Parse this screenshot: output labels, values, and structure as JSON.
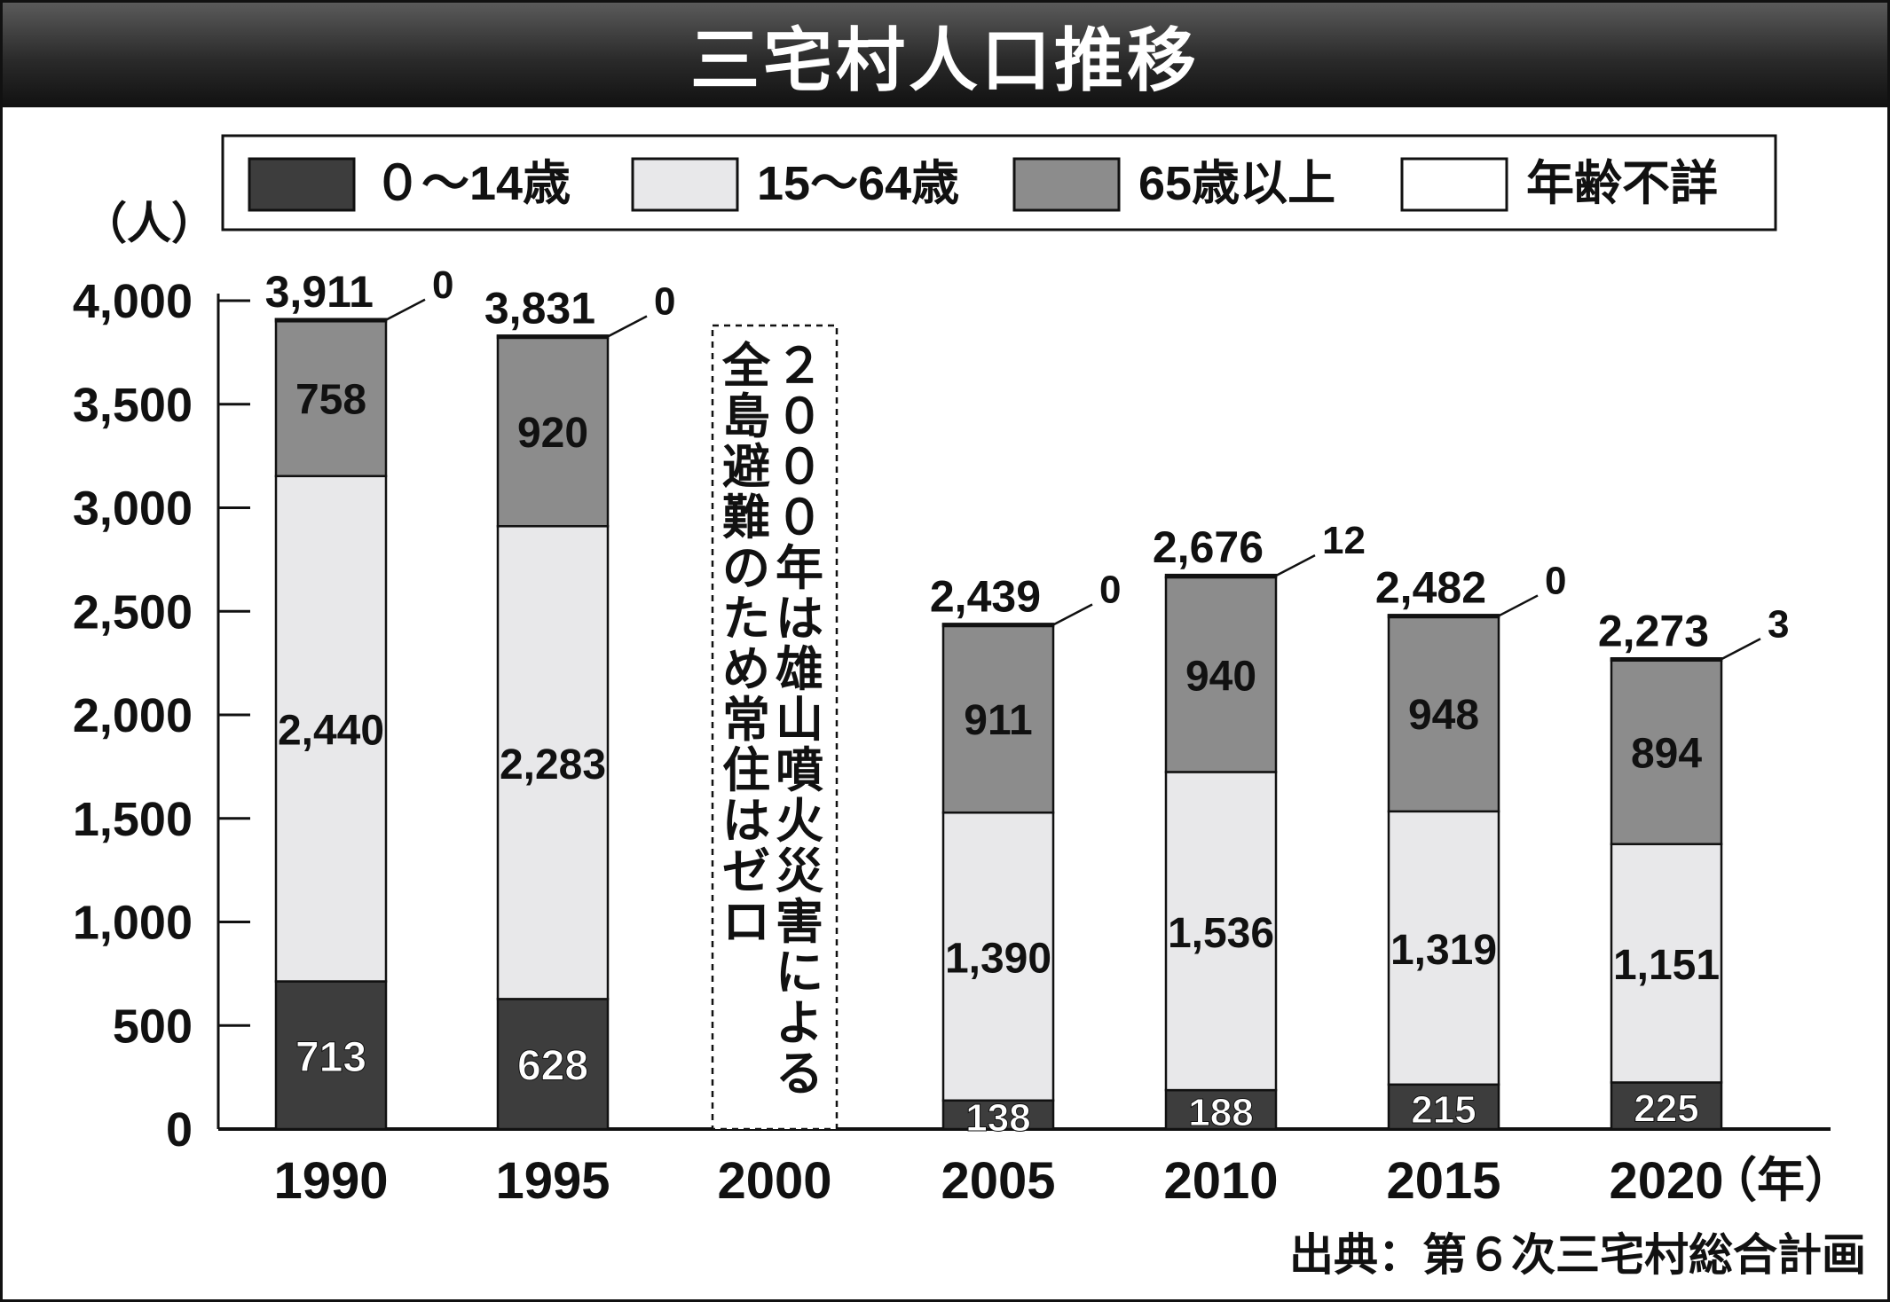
{
  "title": "三宅村人口推移",
  "source": "出典：第６次三宅村総合計画",
  "colors": {
    "age_0_14": "#3d3d3d",
    "age_15_64": "#e8e8ea",
    "age_65_plus": "#8c8c8c",
    "age_unknown": "#ffffff",
    "text_dark": "#111111",
    "text_light": "#ffffff"
  },
  "chart_data": {
    "type": "bar",
    "stacked": true,
    "y_unit_label": "（人）",
    "x_unit_label": "（年）",
    "ylim": [
      0,
      4000
    ],
    "y_ticks": [
      0,
      500,
      1000,
      1500,
      2000,
      2500,
      3000,
      3500,
      4000
    ],
    "y_tick_labels": [
      "0",
      "500",
      "1,000",
      "1,500",
      "2,000",
      "2,500",
      "3,000",
      "3,500",
      "4,000"
    ],
    "legend_position": "top",
    "categories": [
      "1990",
      "1995",
      "2000",
      "2005",
      "2010",
      "2015",
      "2020"
    ],
    "series": [
      {
        "name": "０～14歳",
        "values": [
          713,
          628,
          null,
          138,
          188,
          215,
          225
        ],
        "labels": [
          "713",
          "628",
          "",
          "138",
          "188",
          "215",
          "225"
        ]
      },
      {
        "name": "15～64歳",
        "values": [
          2440,
          2283,
          null,
          1390,
          1536,
          1319,
          1151
        ],
        "labels": [
          "2,440",
          "2,283",
          "",
          "1,390",
          "1,536",
          "1,319",
          "1,151"
        ]
      },
      {
        "name": "65歳以上",
        "values": [
          758,
          920,
          null,
          911,
          940,
          948,
          894
        ],
        "labels": [
          "758",
          "920",
          "",
          "911",
          "940",
          "948",
          "894"
        ]
      },
      {
        "name": "年齢不詳",
        "values": [
          0,
          0,
          null,
          0,
          12,
          0,
          3
        ],
        "labels": [
          "0",
          "0",
          "",
          "0",
          "12",
          "0",
          "3"
        ]
      }
    ],
    "totals": [
      3911,
      3831,
      null,
      2439,
      2676,
      2482,
      2273
    ],
    "total_labels": [
      "3,911",
      "3,831",
      "",
      "2,439",
      "2,676",
      "2,482",
      "2,273"
    ],
    "annotation": {
      "category": "2000",
      "lines": [
        "２０００年は雄山噴火災害による",
        "全島避難のため常住はゼロ"
      ]
    }
  }
}
